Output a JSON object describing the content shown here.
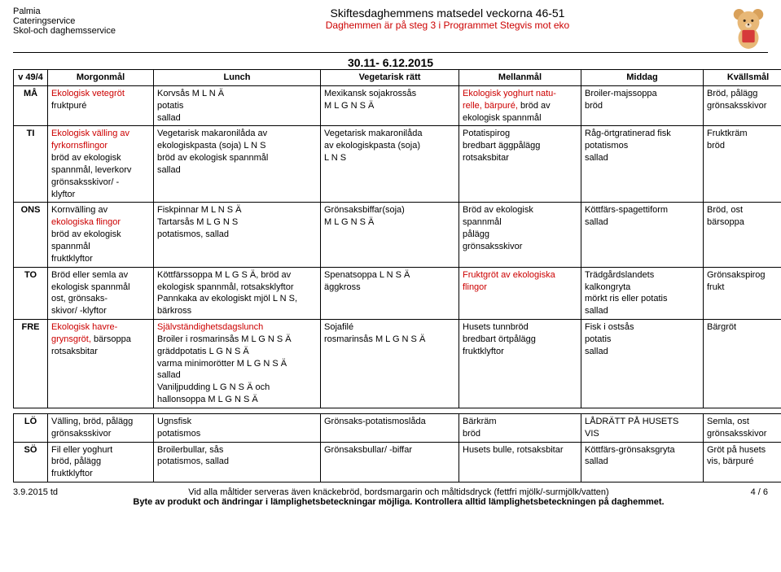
{
  "header": {
    "org": "Palmia",
    "dept1": "Cateringservice",
    "dept2": "Skol-och daghemsservice",
    "title1": "Skiftesdaghemmens matsedel veckorna 46-51",
    "title2": "Daghemmen är på steg 3 i Programmet Stegvis mot eko",
    "date_range": "30.11- 6.12.2015"
  },
  "table": {
    "week_label": "v 49/4",
    "cols": [
      "Morgonmål",
      "Lunch",
      "Vegetarisk rätt",
      "Mellanmål",
      "Middag",
      "Kvällsmål"
    ],
    "rows": [
      {
        "day": "MÅ",
        "morgon": [
          {
            "t": "Ekologisk vetegröt",
            "c": "red"
          },
          {
            "t": "fruktpuré"
          }
        ],
        "lunch": [
          {
            "t": "Korvsås M L N Ä"
          },
          {
            "t": "potatis"
          },
          {
            "t": "sallad"
          }
        ],
        "veg": [
          {
            "t": "Mexikansk sojakrossås"
          },
          {
            "t": "M L G N S Ä"
          }
        ],
        "mellan": [
          {
            "t": "Ekologisk yoghurt natu-",
            "c": "red"
          },
          {
            "t": "relle, bärpuré, ",
            "c": "red",
            "append": {
              "t": "bröd av"
            }
          },
          {
            "t": "ekologisk spannmål"
          }
        ],
        "middag": [
          {
            "t": "Broiler-majssoppa"
          },
          {
            "t": "bröd"
          }
        ],
        "kvall": [
          {
            "t": "Bröd, pålägg"
          },
          {
            "t": "grönsaksskivor"
          }
        ]
      },
      {
        "day": "TI",
        "morgon": [
          {
            "t": "Ekologisk välling av",
            "c": "red"
          },
          {
            "t": "fyrkornsflingor",
            "c": "red"
          },
          {
            "t": "bröd av ekologisk"
          },
          {
            "t": "spannmål, leverkorv"
          },
          {
            "t": "grönsaksskivor/ -"
          },
          {
            "t": "klyftor"
          }
        ],
        "lunch": [
          {
            "t": "Vegetarisk makaronilåda av"
          },
          {
            "t": "ekologiskpasta (soja)",
            "append": {
              "t": " L N S"
            }
          },
          {
            "t": "bröd av ekologisk spannmål"
          },
          {
            "t": "sallad"
          }
        ],
        "veg": [
          {
            "t": "Vegetarisk makaronilåda"
          },
          {
            "t": "av ekologiskpasta (soja)"
          },
          {
            "t": " L N S"
          }
        ],
        "mellan": [
          {
            "t": "Potatispirog"
          },
          {
            "t": "bredbart äggpålägg"
          },
          {
            "t": "rotsaksbitar"
          }
        ],
        "middag": [
          {
            "t": "Råg-örtgratinerad fisk"
          },
          {
            "t": "potatismos"
          },
          {
            "t": "sallad"
          }
        ],
        "kvall": [
          {
            "t": "Fruktkräm"
          },
          {
            "t": "bröd"
          }
        ]
      },
      {
        "day": "ONS",
        "morgon": [
          {
            "t": "Kornvälling av"
          },
          {
            "t": "ekologiska flingor",
            "c": "red"
          },
          {
            "t": "bröd av ekologisk"
          },
          {
            "t": "spannmål"
          },
          {
            "t": "fruktklyftor"
          }
        ],
        "lunch": [
          {
            "t": "Fiskpinnar M L N S Ä"
          },
          {
            "t": "Tartarsås M L G N S"
          },
          {
            "t": "potatismos, sallad"
          }
        ],
        "veg": [
          {
            "t": "Grönsaksbiffar(soja)"
          },
          {
            "t": "M L G N S Ä"
          }
        ],
        "mellan": [
          {
            "t": "Bröd av ekologisk"
          },
          {
            "t": "spannmål"
          },
          {
            "t": "pålägg"
          },
          {
            "t": "grönsaksskivor"
          }
        ],
        "middag": [
          {
            "t": "Köttfärs-spagettiform"
          },
          {
            "t": "sallad"
          }
        ],
        "kvall": [
          {
            "t": "Bröd, ost"
          },
          {
            "t": "bärsoppa"
          }
        ]
      },
      {
        "day": "TO",
        "morgon": [
          {
            "t": "Bröd eller semla av"
          },
          {
            "t": "ekologisk spannmål"
          },
          {
            "t": "ost, grönsaks-"
          },
          {
            "t": "skivor/ -klyftor"
          }
        ],
        "lunch": [
          {
            "t": "Köttfärssoppa M L G S Ä, ",
            "append": {
              "t": "bröd av",
              "c": ""
            }
          },
          {
            "t": "ekologisk spannmål, rotsaksklyftor"
          },
          {
            "t": "Pannkaka av ekologiskt mjöl L N S,"
          },
          {
            "t": "bärkross"
          }
        ],
        "veg": [
          {
            "t": "Spenatsoppa L N S Ä"
          },
          {
            "t": "äggkross"
          }
        ],
        "mellan": [
          {
            "t": "Fruktgröt av ekologiska",
            "c": "red"
          },
          {
            "t": "flingor",
            "c": "red"
          }
        ],
        "middag": [
          {
            "t": "Trädgårdslandets"
          },
          {
            "t": "kalkongryta"
          },
          {
            "t": "mörkt ris eller potatis"
          },
          {
            "t": "sallad"
          }
        ],
        "kvall": [
          {
            "t": "Grönsakspirog"
          },
          {
            "t": "frukt"
          }
        ]
      },
      {
        "day": "FRE",
        "morgon": [
          {
            "t": "Ekologisk havre-",
            "c": "red"
          },
          {
            "t": "grynsgröt, ",
            "c": "red",
            "append": {
              "t": "bärsoppa"
            }
          },
          {
            "t": "rotsaksbitar"
          }
        ],
        "lunch": [
          {
            "t": "Självständighetsdagslunch",
            "c": "red"
          },
          {
            "t": "Broiler i rosmarinsås M L G N S Ä"
          },
          {
            "t": "gräddpotatis L G N S Ä"
          },
          {
            "t": "varma minimorötter M L G N S Ä"
          },
          {
            "t": "sallad"
          },
          {
            "t": "Vaniljpudding L G N S Ä och"
          },
          {
            "t": "hallonsoppa M L G N S Ä"
          }
        ],
        "veg": [
          {
            "t": "Sojafilé"
          },
          {
            "t": "rosmarinsås M L G N S Ä"
          }
        ],
        "mellan": [
          {
            "t": "Husets tunnbröd"
          },
          {
            "t": "bredbart örtpålägg"
          },
          {
            "t": "fruktklyftor"
          }
        ],
        "middag": [
          {
            "t": "Fisk i ostsås"
          },
          {
            "t": "potatis"
          },
          {
            "t": "sallad"
          }
        ],
        "kvall": [
          {
            "t": "Bärgröt"
          }
        ]
      }
    ],
    "rows2": [
      {
        "day": "LÖ",
        "morgon": [
          {
            "t": "Välling, bröd, pålägg"
          },
          {
            "t": "grönsaksskivor"
          }
        ],
        "lunch": [
          {
            "t": "Ugnsfisk"
          },
          {
            "t": "potatismos"
          }
        ],
        "veg": [
          {
            "t": "Grönsaks-potatismoslåda"
          }
        ],
        "mellan": [
          {
            "t": "Bärkräm"
          },
          {
            "t": "bröd"
          }
        ],
        "middag": [
          {
            "t": "LÅDRÄTT PÅ HUSETS"
          },
          {
            "t": "VIS"
          }
        ],
        "kvall": [
          {
            "t": "Semla, ost"
          },
          {
            "t": "grönsaksskivor"
          }
        ]
      },
      {
        "day": "SÖ",
        "morgon": [
          {
            "t": "Fil eller yoghurt"
          },
          {
            "t": "bröd, pålägg"
          },
          {
            "t": "fruktklyftor"
          }
        ],
        "lunch": [
          {
            "t": "Broilerbullar, sås"
          },
          {
            "t": "potatismos, sallad"
          }
        ],
        "veg": [
          {
            "t": "Grönsaksbullar/ -biffar"
          }
        ],
        "mellan": [
          {
            "t": "Husets bulle, rotsaksbitar"
          }
        ],
        "middag": [
          {
            "t": "Köttfärs-grönsaksgryta"
          },
          {
            "t": "sallad"
          }
        ],
        "kvall": [
          {
            "t": "Gröt på husets"
          },
          {
            "t": "vis, bärpuré"
          }
        ]
      }
    ]
  },
  "footer": {
    "date": "3.9.2015 td",
    "line1": "Vid alla måltider serveras även knäckebröd, bordsmargarin och måltidsdryck (fettfri mjölk/-surmjölk/vatten)",
    "line2": "Byte av produkt och ändringar i lämplighetsbeteckningar möjliga. Kontrollera alltid lämplighetsbeteckningen på daghemmet.",
    "page": "4 / 6"
  }
}
